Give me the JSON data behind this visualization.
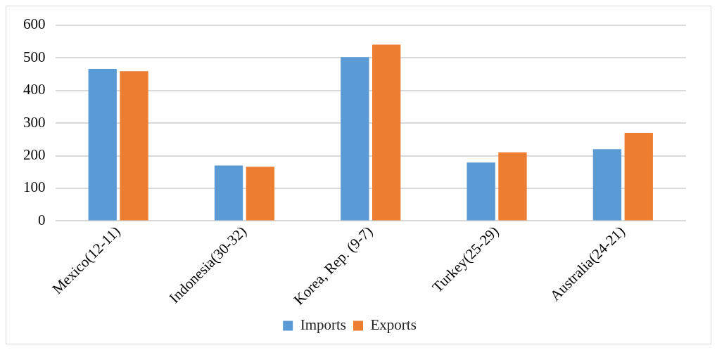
{
  "chart_data": {
    "type": "bar",
    "categories": [
      "Mexico(12-11)",
      "Indonesia(30-32)",
      "Korea, Rep. (9-7)",
      "Turkey(25-29)",
      "Australia(24-21)"
    ],
    "series": [
      {
        "name": "Imports",
        "color": "#5b9bd5",
        "values": [
          466,
          170,
          502,
          179,
          220
        ]
      },
      {
        "name": "Exports",
        "color": "#ed7d31",
        "values": [
          459,
          166,
          540,
          210,
          270
        ]
      }
    ],
    "ylim": [
      0,
      600
    ],
    "yticks": [
      0,
      100,
      200,
      300,
      400,
      500,
      600
    ],
    "grid": "y",
    "legend": "bottom"
  }
}
